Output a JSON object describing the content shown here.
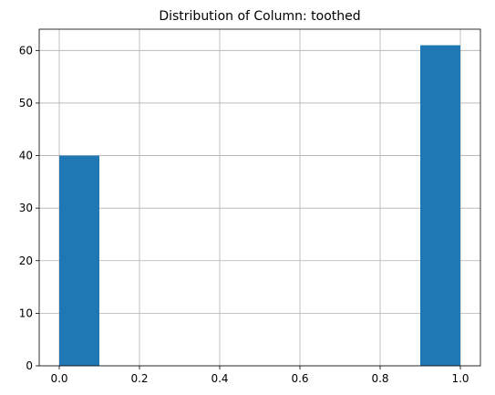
{
  "chart_data": {
    "type": "bar",
    "title": "Distribution of Column: toothed",
    "xlabel": "",
    "ylabel": "",
    "bins": [
      {
        "start": 0.0,
        "end": 0.1,
        "count": 40
      },
      {
        "start": 0.1,
        "end": 0.2,
        "count": 0
      },
      {
        "start": 0.2,
        "end": 0.3,
        "count": 0
      },
      {
        "start": 0.3,
        "end": 0.4,
        "count": 0
      },
      {
        "start": 0.4,
        "end": 0.5,
        "count": 0
      },
      {
        "start": 0.5,
        "end": 0.6,
        "count": 0
      },
      {
        "start": 0.6,
        "end": 0.7,
        "count": 0
      },
      {
        "start": 0.7,
        "end": 0.8,
        "count": 0
      },
      {
        "start": 0.8,
        "end": 0.9,
        "count": 0
      },
      {
        "start": 0.9,
        "end": 1.0,
        "count": 61
      }
    ],
    "xlim": [
      -0.05,
      1.05
    ],
    "ylim": [
      0,
      64.05
    ],
    "xticks": [
      "0.0",
      "0.2",
      "0.4",
      "0.6",
      "0.8",
      "1.0"
    ],
    "yticks": [
      "0",
      "10",
      "20",
      "30",
      "40",
      "50",
      "60"
    ],
    "grid": true,
    "bar_color": "#1f77b4",
    "grid_color": "#b0b0b0"
  }
}
